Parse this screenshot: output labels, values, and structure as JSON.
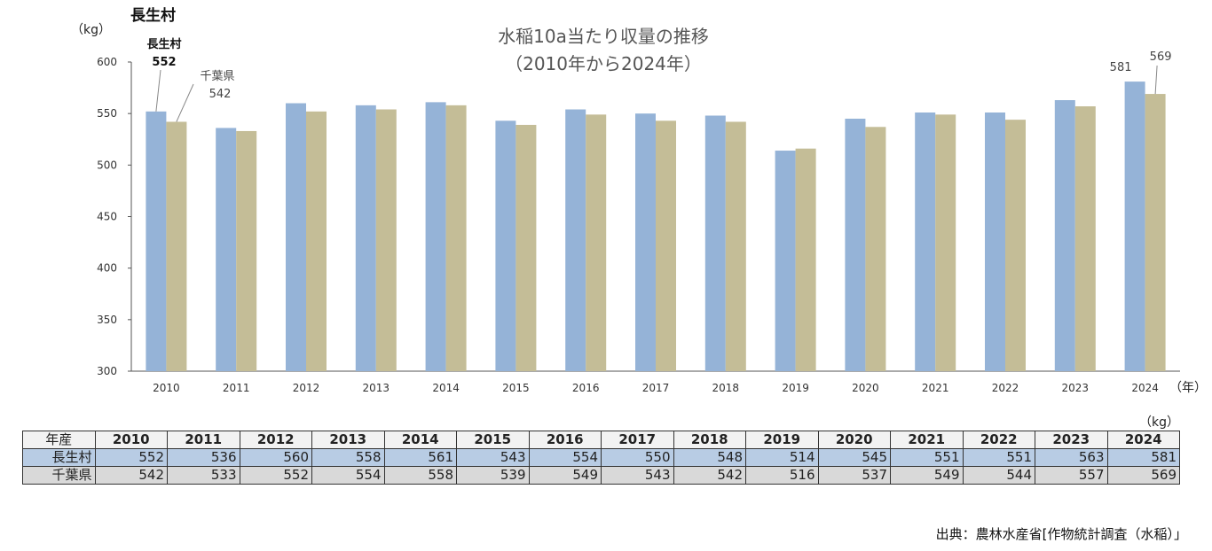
{
  "page_title": "長生村",
  "source": "出典：農林水産省[作物統計調査（水稲）」",
  "colors": {
    "series_a": "#95b3d7",
    "series_b": "#c4bd97",
    "axis": "#555555"
  },
  "chart_data": {
    "type": "bar",
    "title_line1": "水稲10a当たり収量の推移",
    "title_line2": "（2010年から2024年）",
    "ylabel": "（kg）",
    "xlabel": "（年）",
    "ylim": [
      300,
      600
    ],
    "yticks": [
      300,
      350,
      400,
      450,
      500,
      550,
      600
    ],
    "grid": false,
    "categories": [
      "2010",
      "2011",
      "2012",
      "2013",
      "2014",
      "2015",
      "2016",
      "2017",
      "2018",
      "2019",
      "2020",
      "2021",
      "2022",
      "2023",
      "2024"
    ],
    "series": [
      {
        "name": "長生村",
        "values": [
          552,
          536,
          560,
          558,
          561,
          543,
          554,
          550,
          548,
          514,
          545,
          551,
          551,
          563,
          581
        ]
      },
      {
        "name": "千葉県",
        "values": [
          542,
          533,
          552,
          554,
          558,
          539,
          549,
          543,
          542,
          516,
          537,
          549,
          544,
          557,
          569
        ]
      }
    ],
    "annotations": [
      {
        "series": "長生村",
        "category": "2010",
        "label": "長生村",
        "value": "552"
      },
      {
        "series": "千葉県",
        "category": "2010",
        "label": "千葉県",
        "value": "542"
      },
      {
        "series": "長生村",
        "category": "2024",
        "value": "581"
      },
      {
        "series": "千葉県",
        "category": "2024",
        "value": "569"
      }
    ]
  },
  "table": {
    "unit": "（kg）",
    "header_label": "年産",
    "years": [
      "2010",
      "2011",
      "2012",
      "2013",
      "2014",
      "2015",
      "2016",
      "2017",
      "2018",
      "2019",
      "2020",
      "2021",
      "2022",
      "2023",
      "2024"
    ],
    "rows": [
      {
        "label": "長生村",
        "values": [
          "552",
          "536",
          "560",
          "558",
          "561",
          "543",
          "554",
          "550",
          "548",
          "514",
          "545",
          "551",
          "551",
          "563",
          "581"
        ]
      },
      {
        "label": "千葉県",
        "values": [
          "542",
          "533",
          "552",
          "554",
          "558",
          "539",
          "549",
          "543",
          "542",
          "516",
          "537",
          "549",
          "544",
          "557",
          "569"
        ]
      }
    ]
  }
}
